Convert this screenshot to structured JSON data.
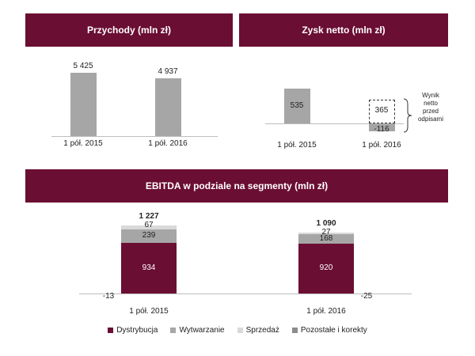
{
  "chart_data": [
    {
      "type": "bar",
      "title": "Przychody (mln zł)",
      "categories": [
        "1 pół. 2015",
        "1 pół. 2016"
      ],
      "values": [
        5425,
        4937
      ],
      "value_labels": [
        "5 425",
        "4 937"
      ],
      "color": "#a6a6a6"
    },
    {
      "type": "bar",
      "title": "Zysk netto (mln zł)",
      "categories": [
        "1 pół. 2015",
        "1 pół. 2016"
      ],
      "values": [
        535,
        -116
      ],
      "value_labels": [
        "535",
        "-116"
      ],
      "color": "#a6a6a6",
      "annotation": {
        "category": "1 pół. 2016",
        "value": 365,
        "value_label": "365",
        "text_lines": [
          "Wynik",
          "netto",
          "przed",
          "odpisami"
        ]
      }
    },
    {
      "type": "bar",
      "stacked": true,
      "title": "EBITDA w podziale na segmenty (mln zł)",
      "categories": [
        "1 pół. 2015",
        "1 pół. 2016"
      ],
      "totals": [
        1227,
        1090
      ],
      "total_labels": [
        "1 227",
        "1 090"
      ],
      "series": [
        {
          "name": "Dystrybucja",
          "color": "#6b0e33",
          "values": [
            934,
            920
          ],
          "labels": [
            "934",
            "920"
          ]
        },
        {
          "name": "Wytwarzanie",
          "color": "#a6a6a6",
          "values": [
            239,
            168
          ],
          "labels": [
            "239",
            "168"
          ]
        },
        {
          "name": "Sprzedaż",
          "color": "#d9d9d9",
          "values": [
            67,
            27
          ],
          "labels": [
            "67",
            "27"
          ]
        },
        {
          "name": "Pozostałe i korekty",
          "color": "#8c8c8c",
          "values": [
            -13,
            -25
          ],
          "labels": [
            "-13",
            "-25"
          ]
        }
      ],
      "legend_position": "bottom"
    }
  ]
}
